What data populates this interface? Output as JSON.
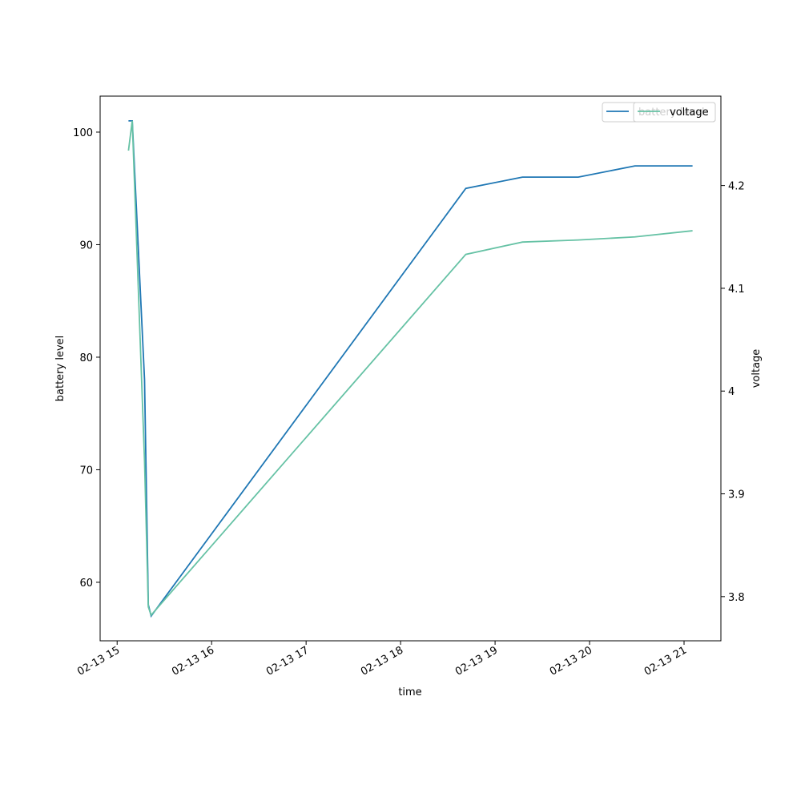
{
  "chart_data": {
    "type": "line",
    "x_label": "time",
    "y_label": "battery level",
    "y2_label": "voltage",
    "x": [
      15.12,
      15.16,
      15.29,
      15.33,
      15.36,
      18.69,
      19.29,
      19.88,
      20.48,
      21.09
    ],
    "series": [
      {
        "name": "battery level",
        "color": "#1f77b4",
        "values": [
          101,
          101,
          78,
          58,
          57,
          95,
          96,
          96,
          97,
          97
        ]
      },
      {
        "name": "voltage",
        "color": "#66c2a5",
        "axis": "y2",
        "values": [
          4.234,
          4.263,
          3.932,
          3.79,
          3.782,
          4.133,
          4.145,
          4.147,
          4.15,
          4.156
        ]
      }
    ],
    "xlim": [
      14.82,
      21.39
    ],
    "xticks": [
      {
        "value": 15,
        "label": "02-13 15"
      },
      {
        "value": 16,
        "label": "02-13 16"
      },
      {
        "value": 17,
        "label": "02-13 17"
      },
      {
        "value": 18,
        "label": "02-13 18"
      },
      {
        "value": 19,
        "label": "02-13 19"
      },
      {
        "value": 20,
        "label": "02-13 20"
      },
      {
        "value": 21,
        "label": "02-13 21"
      }
    ],
    "ylim": [
      54.8,
      103.2
    ],
    "yticks": [
      60,
      70,
      80,
      90,
      100
    ],
    "y2lim": [
      3.757,
      4.287
    ],
    "y2ticks": [
      3.8,
      3.9,
      4.0,
      4.1,
      4.2
    ],
    "legend": "upper right"
  }
}
